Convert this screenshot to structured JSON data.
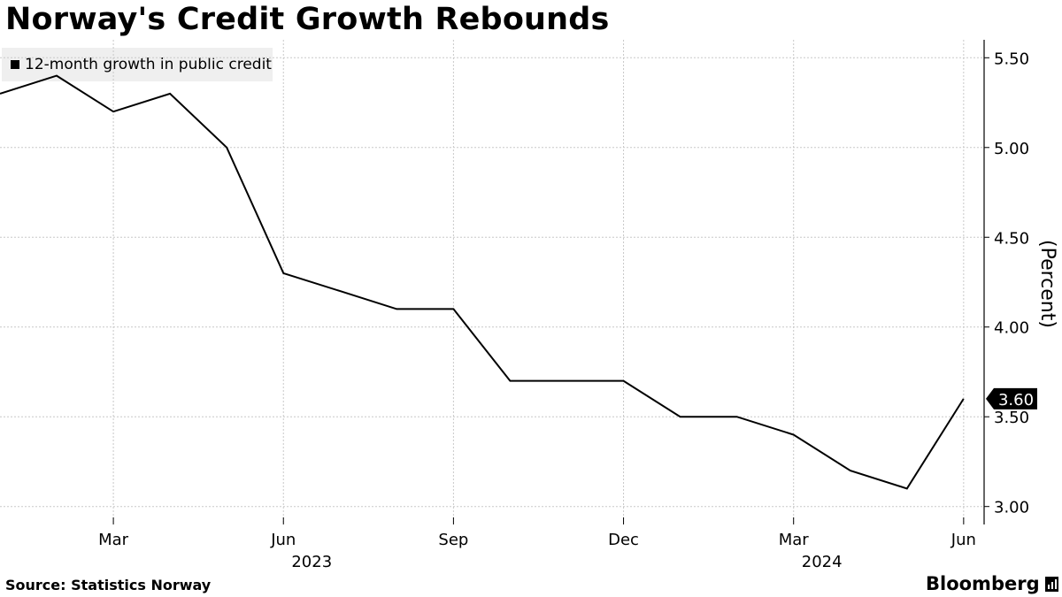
{
  "title": "Norway's Credit Growth Rebounds",
  "source": "Source: Statistics Norway",
  "brand": "Bloomberg",
  "brand_icon": "bloomberg-terminal-icon",
  "colors": {
    "line": "#000000",
    "grid": "#c8c8c8",
    "legend_bg": "#efefef",
    "last_value_bg": "#000000"
  },
  "chart_data": {
    "type": "line",
    "title": "Norway's Credit Growth Rebounds",
    "ylabel": "(Percent)",
    "xlabel": "",
    "ylim": [
      2.9,
      5.6
    ],
    "y_axis_position": "right",
    "grid": true,
    "legend_position": "top-left",
    "y_ticks": [
      {
        "value": 3.0,
        "label": "3.00"
      },
      {
        "value": 3.5,
        "label": "3.50"
      },
      {
        "value": 4.0,
        "label": "4.00"
      },
      {
        "value": 4.5,
        "label": "4.50"
      },
      {
        "value": 5.0,
        "label": "5.00"
      },
      {
        "value": 5.5,
        "label": "5.50"
      }
    ],
    "x_ticks": [
      {
        "date": "2023-03",
        "label": "Mar",
        "year_label": ""
      },
      {
        "date": "2023-06",
        "label": "Jun",
        "year_label": "2023"
      },
      {
        "date": "2023-09",
        "label": "Sep",
        "year_label": ""
      },
      {
        "date": "2023-12",
        "label": "Dec",
        "year_label": ""
      },
      {
        "date": "2024-03",
        "label": "Mar",
        "year_label": "2024"
      },
      {
        "date": "2024-06",
        "label": "Jun",
        "year_label": ""
      }
    ],
    "series": [
      {
        "name": "12-month growth in public credit",
        "x": [
          "2023-01",
          "2023-02",
          "2023-03",
          "2023-04",
          "2023-05",
          "2023-06",
          "2023-07",
          "2023-08",
          "2023-09",
          "2023-10",
          "2023-11",
          "2023-12",
          "2024-01",
          "2024-02",
          "2024-03",
          "2024-04",
          "2024-05",
          "2024-06"
        ],
        "values": [
          5.3,
          5.4,
          5.2,
          5.3,
          5.0,
          4.3,
          4.2,
          4.1,
          4.1,
          3.7,
          3.7,
          3.7,
          3.5,
          3.5,
          3.4,
          3.2,
          3.1,
          3.6
        ]
      }
    ],
    "last_value_label": "3.60"
  }
}
